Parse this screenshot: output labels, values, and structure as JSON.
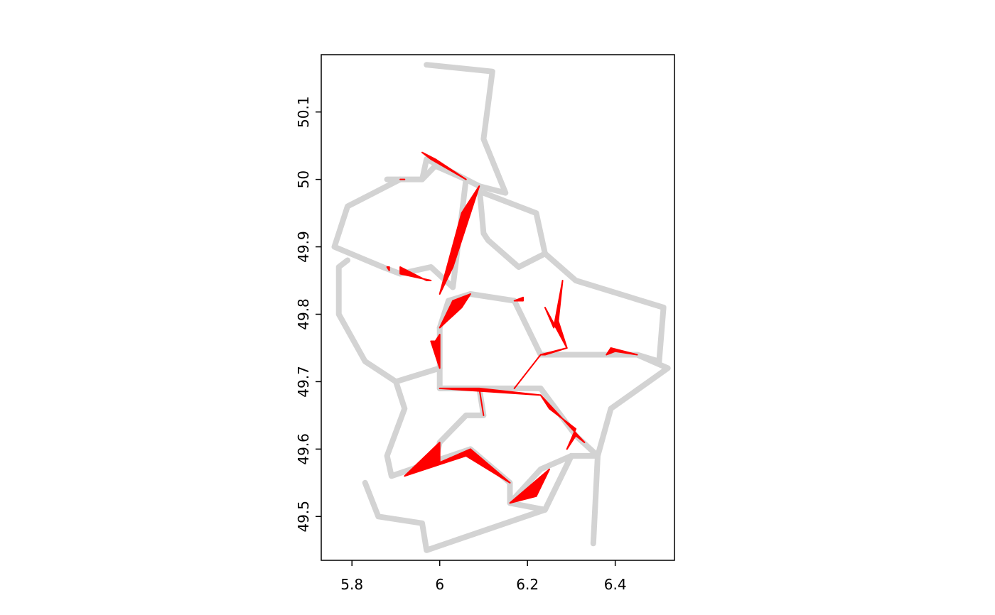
{
  "chart_data": {
    "type": "map",
    "title": "",
    "xlabel": "",
    "ylabel": "",
    "xlim": [
      5.73,
      6.535
    ],
    "ylim": [
      49.435,
      50.185
    ],
    "x_ticks": [
      {
        "value": 5.8,
        "label": "5.8"
      },
      {
        "value": 6.0,
        "label": "6"
      },
      {
        "value": 6.2,
        "label": "6.2"
      },
      {
        "value": 6.4,
        "label": "6.4"
      }
    ],
    "y_ticks": [
      {
        "value": 49.5,
        "label": "49.5"
      },
      {
        "value": 49.6,
        "label": "49.6"
      },
      {
        "value": 49.7,
        "label": "49.7"
      },
      {
        "value": 49.8,
        "label": "49.8"
      },
      {
        "value": 49.9,
        "label": "49.9"
      },
      {
        "value": 50.0,
        "label": "50"
      },
      {
        "value": 50.1,
        "label": "50.1"
      }
    ],
    "colors": {
      "boundary": "#d3d3d3",
      "highlight": "#ff0000",
      "frame": "#000000"
    },
    "boundaries": [
      [
        [
          5.97,
          50.17
        ],
        [
          6.12,
          50.16
        ],
        [
          6.1,
          50.06
        ],
        [
          6.15,
          49.98
        ],
        [
          6.09,
          49.99
        ],
        [
          6.06,
          50.0
        ],
        [
          5.99,
          50.02
        ],
        [
          5.96,
          50.0
        ],
        [
          5.88,
          50.0
        ]
      ],
      [
        [
          5.96,
          50.0
        ],
        [
          5.97,
          50.03
        ],
        [
          6.06,
          50.0
        ],
        [
          6.03,
          49.84
        ],
        [
          5.98,
          49.87
        ],
        [
          5.91,
          49.86
        ],
        [
          5.87,
          49.87
        ],
        [
          5.76,
          49.9
        ],
        [
          5.79,
          49.96
        ],
        [
          5.91,
          50.0
        ]
      ],
      [
        [
          6.09,
          49.99
        ],
        [
          6.1,
          49.92
        ],
        [
          6.11,
          49.91
        ],
        [
          6.18,
          49.87
        ],
        [
          6.24,
          49.89
        ],
        [
          6.22,
          49.95
        ],
        [
          6.1,
          49.98
        ]
      ],
      [
        [
          6.24,
          49.89
        ],
        [
          6.31,
          49.85
        ],
        [
          6.51,
          49.81
        ],
        [
          6.5,
          49.73
        ],
        [
          6.45,
          49.74
        ],
        [
          6.23,
          49.74
        ],
        [
          6.17,
          49.82
        ],
        [
          6.07,
          49.83
        ],
        [
          6.02,
          49.82
        ],
        [
          6.0,
          49.78
        ]
      ],
      [
        [
          6.0,
          49.78
        ],
        [
          6.0,
          49.72
        ],
        [
          6.0,
          49.69
        ],
        [
          6.17,
          49.69
        ],
        [
          6.23,
          49.69
        ],
        [
          6.31,
          49.62
        ],
        [
          6.36,
          49.59
        ],
        [
          6.39,
          49.66
        ],
        [
          6.52,
          49.72
        ],
        [
          6.45,
          49.74
        ]
      ],
      [
        [
          5.79,
          49.88
        ],
        [
          5.77,
          49.87
        ],
        [
          5.77,
          49.8
        ],
        [
          5.83,
          49.73
        ],
        [
          5.9,
          49.7
        ],
        [
          6.0,
          49.72
        ]
      ],
      [
        [
          5.9,
          49.7
        ],
        [
          5.92,
          49.66
        ],
        [
          5.88,
          49.59
        ],
        [
          5.89,
          49.56
        ],
        [
          5.98,
          49.58
        ],
        [
          6.07,
          49.6
        ],
        [
          6.16,
          49.55
        ],
        [
          6.16,
          49.52
        ],
        [
          6.23,
          49.57
        ],
        [
          6.3,
          49.59
        ],
        [
          6.36,
          49.59
        ],
        [
          6.35,
          49.46
        ]
      ],
      [
        [
          5.83,
          49.55
        ],
        [
          5.86,
          49.5
        ],
        [
          5.96,
          49.49
        ],
        [
          5.97,
          49.45
        ],
        [
          6.24,
          49.51
        ],
        [
          6.3,
          49.59
        ]
      ],
      [
        [
          6.0,
          49.69
        ],
        [
          6.09,
          49.69
        ],
        [
          6.1,
          49.65
        ],
        [
          6.06,
          49.65
        ],
        [
          6.0,
          49.61
        ],
        [
          5.99,
          49.58
        ]
      ],
      [
        [
          6.16,
          49.52
        ],
        [
          6.24,
          49.51
        ],
        [
          6.3,
          49.59
        ]
      ]
    ],
    "highlights": [
      [
        [
          5.96,
          50.04
        ],
        [
          5.98,
          50.03
        ],
        [
          6.06,
          50.0
        ],
        [
          5.99,
          50.03
        ]
      ],
      [
        [
          5.91,
          50.0
        ],
        [
          5.92,
          50.0
        ],
        [
          5.91,
          50.0
        ]
      ],
      [
        [
          6.09,
          49.99
        ],
        [
          6.06,
          49.96
        ],
        [
          6.05,
          49.95
        ],
        [
          6.0,
          49.83
        ],
        [
          6.03,
          49.87
        ]
      ],
      [
        [
          5.91,
          49.87
        ],
        [
          5.97,
          49.85
        ],
        [
          5.98,
          49.85
        ],
        [
          5.91,
          49.86
        ]
      ],
      [
        [
          5.88,
          49.87
        ],
        [
          5.885,
          49.87
        ],
        [
          5.885,
          49.865
        ]
      ],
      [
        [
          6.07,
          49.83
        ],
        [
          6.05,
          49.81
        ],
        [
          6.0,
          49.78
        ],
        [
          6.03,
          49.82
        ]
      ],
      [
        [
          5.99,
          49.76
        ],
        [
          6.0,
          49.77
        ],
        [
          6.0,
          49.72
        ],
        [
          5.98,
          49.76
        ]
      ],
      [
        [
          6.28,
          49.85
        ],
        [
          6.27,
          49.79
        ],
        [
          6.29,
          49.75
        ],
        [
          6.24,
          49.81
        ],
        [
          6.26,
          49.78
        ]
      ],
      [
        [
          6.17,
          49.82
        ],
        [
          6.19,
          49.82
        ],
        [
          6.19,
          49.825
        ]
      ],
      [
        [
          6.29,
          49.75
        ],
        [
          6.24,
          49.74
        ],
        [
          6.23,
          49.74
        ],
        [
          6.17,
          49.69
        ],
        [
          6.23,
          49.74
        ]
      ],
      [
        [
          6.39,
          49.75
        ],
        [
          6.45,
          49.74
        ],
        [
          6.4,
          49.745
        ],
        [
          6.38,
          49.74
        ]
      ],
      [
        [
          6.0,
          49.69
        ],
        [
          6.09,
          49.69
        ],
        [
          6.1,
          49.65
        ],
        [
          6.09,
          49.69
        ],
        [
          6.23,
          49.68
        ]
      ],
      [
        [
          6.23,
          49.68
        ],
        [
          6.33,
          49.61
        ],
        [
          6.31,
          49.62
        ],
        [
          6.29,
          49.6
        ],
        [
          6.31,
          49.63
        ],
        [
          6.25,
          49.66
        ]
      ],
      [
        [
          6.0,
          49.61
        ],
        [
          6.0,
          49.58
        ],
        [
          6.07,
          49.6
        ],
        [
          6.16,
          49.55
        ],
        [
          6.06,
          49.59
        ],
        [
          5.92,
          49.56
        ]
      ],
      [
        [
          6.16,
          49.52
        ],
        [
          6.25,
          49.57
        ],
        [
          6.22,
          49.53
        ],
        [
          6.16,
          49.52
        ]
      ]
    ]
  }
}
